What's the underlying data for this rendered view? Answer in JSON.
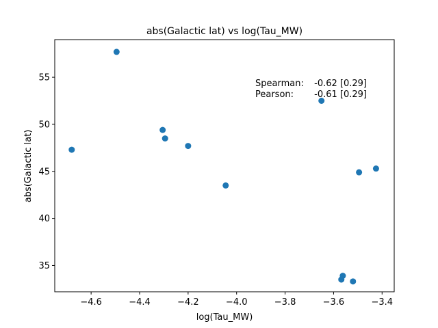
{
  "chart_data": {
    "type": "scatter",
    "title": "abs(Galactic lat) vs log(Tau_MW)",
    "xlabel": "log(Tau_MW)",
    "ylabel": "abs(Galactic lat)",
    "xlim": [
      -4.75,
      -3.35
    ],
    "ylim": [
      32.2,
      59.0
    ],
    "xticks": [
      -4.6,
      -4.4,
      -4.2,
      -4.0,
      -3.8,
      -3.6,
      -3.4
    ],
    "xtick_labels": [
      "−4.6",
      "−4.4",
      "−4.2",
      "−4.0",
      "−3.8",
      "−3.6",
      "−3.4"
    ],
    "yticks": [
      35,
      40,
      45,
      50,
      55
    ],
    "ytick_labels": [
      "35",
      "40",
      "45",
      "50",
      "55"
    ],
    "grid": false,
    "marker_color": "#1f77b4",
    "points": [
      {
        "x": -4.68,
        "y": 47.3
      },
      {
        "x": -4.495,
        "y": 57.7
      },
      {
        "x": -4.305,
        "y": 49.4
      },
      {
        "x": -4.295,
        "y": 48.5
      },
      {
        "x": -4.2,
        "y": 47.7
      },
      {
        "x": -4.045,
        "y": 43.5
      },
      {
        "x": -3.65,
        "y": 52.5
      },
      {
        "x": -3.568,
        "y": 33.5
      },
      {
        "x": -3.562,
        "y": 33.9
      },
      {
        "x": -3.52,
        "y": 33.3
      },
      {
        "x": -3.495,
        "y": 44.9
      },
      {
        "x": -3.425,
        "y": 45.3
      }
    ],
    "annotations": [
      {
        "label": "Spearman:",
        "value": "-0.62 [0.29]"
      },
      {
        "label": "Pearson:",
        "value": "-0.61 [0.29]"
      }
    ]
  }
}
